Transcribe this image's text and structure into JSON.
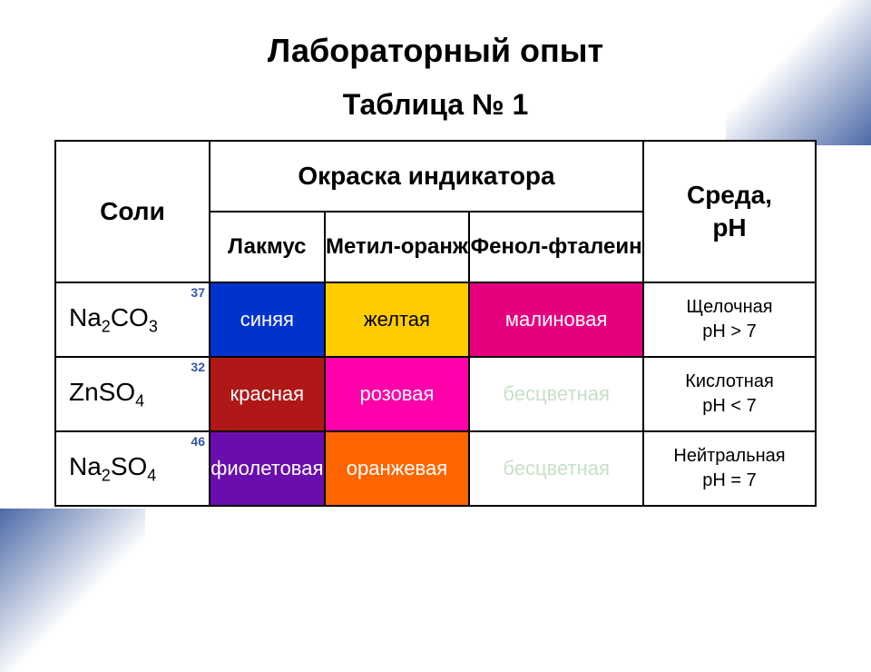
{
  "title": "Лабораторный опыт",
  "subtitle": "Таблица № 1",
  "headers": {
    "salts": "Соли",
    "indicator": "Окраска индикатора",
    "environment": "Среда,\npH",
    "litmus": "Лакмус",
    "methyl": "Метил-оранж",
    "phenol": "Фенол-фталеин"
  },
  "rows": [
    {
      "salt_html": "Na<sub>2</sub>CO<sub>3</sub>",
      "badge": "37",
      "litmus": {
        "label": "синяя",
        "bg": "#0033cc",
        "fg": "#ffffff"
      },
      "methyl": {
        "label": "желтая",
        "bg": "#ffcc00",
        "fg": "#000000"
      },
      "phenol": {
        "label": "малиновая",
        "bg": "#e6007e",
        "fg": "#ffffff"
      },
      "env": "Щелочная\npH > 7"
    },
    {
      "salt_html": "ZnSO<sub>4</sub>",
      "badge": "32",
      "litmus": {
        "label": "красная",
        "bg": "#b01818",
        "fg": "#ffffff"
      },
      "methyl": {
        "label": "розовая",
        "bg": "#ff00aa",
        "fg": "#ffffff"
      },
      "phenol": {
        "label": "бесцветная",
        "bg": "#ffffff",
        "fg": "#c8e0c8"
      },
      "env": "Кислотная\npH < 7"
    },
    {
      "salt_html": "Na<sub>2</sub>SO<sub>4</sub>",
      "badge": "46",
      "litmus": {
        "label": "фиолетовая",
        "bg": "#6a0dad",
        "fg": "#ffffff"
      },
      "methyl": {
        "label": "оранжевая",
        "bg": "#ff6600",
        "fg": "#ffffff"
      },
      "phenol": {
        "label": "бесцветная",
        "bg": "#ffffff",
        "fg": "#c8e0c8"
      },
      "env": "Нейтральная\npH = 7"
    }
  ]
}
